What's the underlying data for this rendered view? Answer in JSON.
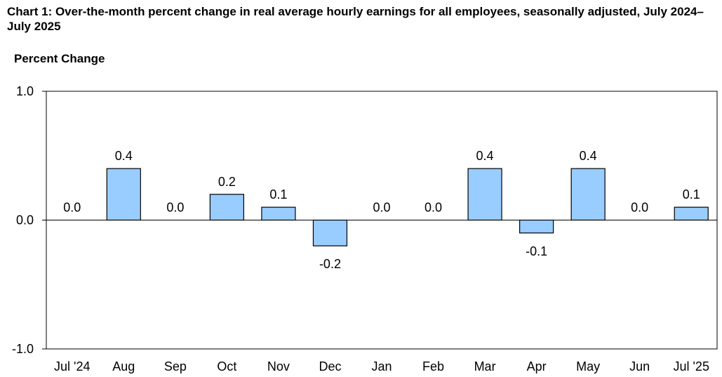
{
  "chart_data": {
    "type": "bar",
    "title": "Chart 1: Over-the-month percent change in real average hourly earnings for all employees, seasonally adjusted, July 2024–July 2025",
    "ylabel": "Percent Change",
    "xlabel": "",
    "categories": [
      "Jul '24",
      "Aug",
      "Sep",
      "Oct",
      "Nov",
      "Dec",
      "Jan",
      "Feb",
      "Mar",
      "Apr",
      "May",
      "Jun",
      "Jul '25"
    ],
    "values": [
      0.0,
      0.4,
      0.0,
      0.2,
      0.1,
      -0.2,
      0.0,
      0.0,
      0.4,
      -0.1,
      0.4,
      0.0,
      0.1
    ],
    "value_labels": [
      "0.0",
      "0.4",
      "0.0",
      "0.2",
      "0.1",
      "-0.2",
      "0.0",
      "0.0",
      "0.4",
      "-0.1",
      "0.4",
      "0.0",
      "0.1"
    ],
    "ylim": [
      -1.0,
      1.0
    ],
    "y_ticks": [
      1.0,
      0.0,
      -1.0
    ],
    "y_tick_labels": [
      "1.0",
      "0.0",
      "-1.0"
    ],
    "grid": false,
    "legend": "none",
    "bar_color": "#99ccff",
    "bar_edge_color": "#000000"
  }
}
